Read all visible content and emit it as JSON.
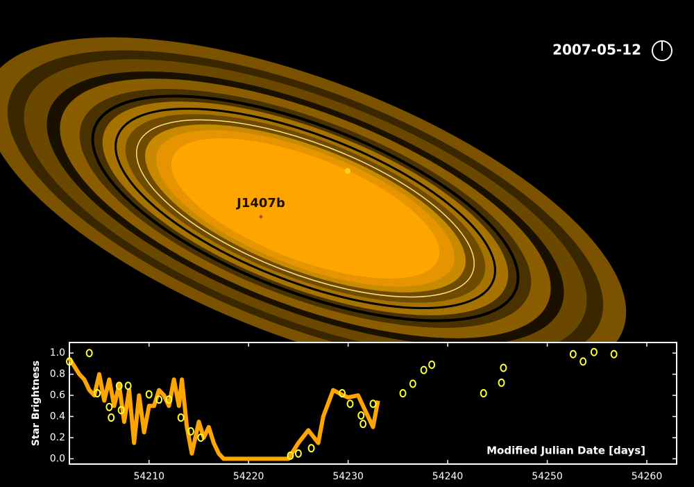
{
  "date": "2007-05-12",
  "planet_label": "J1407b",
  "chart_data": {
    "type": "line",
    "xlabel": "Modified Julian Date [days]",
    "ylabel": "Star Brightness",
    "xlim": [
      54202,
      54263
    ],
    "ylim": [
      -0.05,
      1.1
    ],
    "xticks": [
      54210,
      54220,
      54230,
      54240,
      54250,
      54260
    ],
    "yticks": [
      {
        "value": 0,
        "label": "0.0"
      },
      0.2,
      0.4,
      0.6,
      0.8,
      {
        "value": 1,
        "label": "1.0"
      }
    ],
    "series": [
      {
        "type": "line",
        "color": "#ffa500",
        "x": [
          54202,
          54203,
          54203.5,
          54204,
          54204.5,
          54205,
          54205.5,
          54206,
          54206.5,
          54207,
          54207.5,
          54208,
          54208.5,
          54209,
          54209.5,
          54210,
          54210.5,
          54211,
          54211.5,
          54212,
          54212.5,
          54213,
          54213.3,
          54213.8,
          54214.3,
          54215,
          54215.5,
          54216,
          54216.5,
          54217,
          54217.5,
          54224,
          54225,
          54226,
          54227,
          54227.5,
          54228.5,
          54229.5,
          54230,
          54231,
          54232,
          54232.5,
          54233
        ],
        "values": [
          0.95,
          0.8,
          0.75,
          0.65,
          0.6,
          0.8,
          0.55,
          0.75,
          0.5,
          0.7,
          0.35,
          0.65,
          0.15,
          0.6,
          0.25,
          0.5,
          0.5,
          0.65,
          0.6,
          0.5,
          0.75,
          0.5,
          0.75,
          0.3,
          0.05,
          0.35,
          0.2,
          0.3,
          0.15,
          0.05,
          0,
          0,
          0.15,
          0.27,
          0.15,
          0.4,
          0.65,
          0.6,
          0.58,
          0.6,
          0.4,
          0.3,
          0.55
        ]
      },
      {
        "type": "scatter",
        "color": "#ffff33",
        "x": [
          54202,
          54204,
          54204.8,
          54206,
          54206.2,
          54207,
          54207.2,
          54207.9,
          54210,
          54211,
          54212,
          54213.2,
          54214.2,
          54215.2,
          54224.2,
          54225,
          54226.3,
          54229.4,
          54230.2,
          54231.3,
          54231.5,
          54232.5,
          54235.5,
          54236.5,
          54237.6,
          54238.4,
          54243.6,
          54245.4,
          54245.6,
          54252.6,
          54253.6,
          54254.7,
          54256.7
        ],
        "values": [
          0.92,
          1.0,
          0.62,
          0.49,
          0.39,
          0.69,
          0.46,
          0.69,
          0.61,
          0.56,
          0.56,
          0.39,
          0.26,
          0.2,
          0.03,
          0.05,
          0.1,
          0.62,
          0.52,
          0.41,
          0.33,
          0.52,
          0.62,
          0.71,
          0.84,
          0.89,
          0.62,
          0.72,
          0.86,
          0.99,
          0.92,
          1.01,
          0.99
        ]
      }
    ]
  }
}
